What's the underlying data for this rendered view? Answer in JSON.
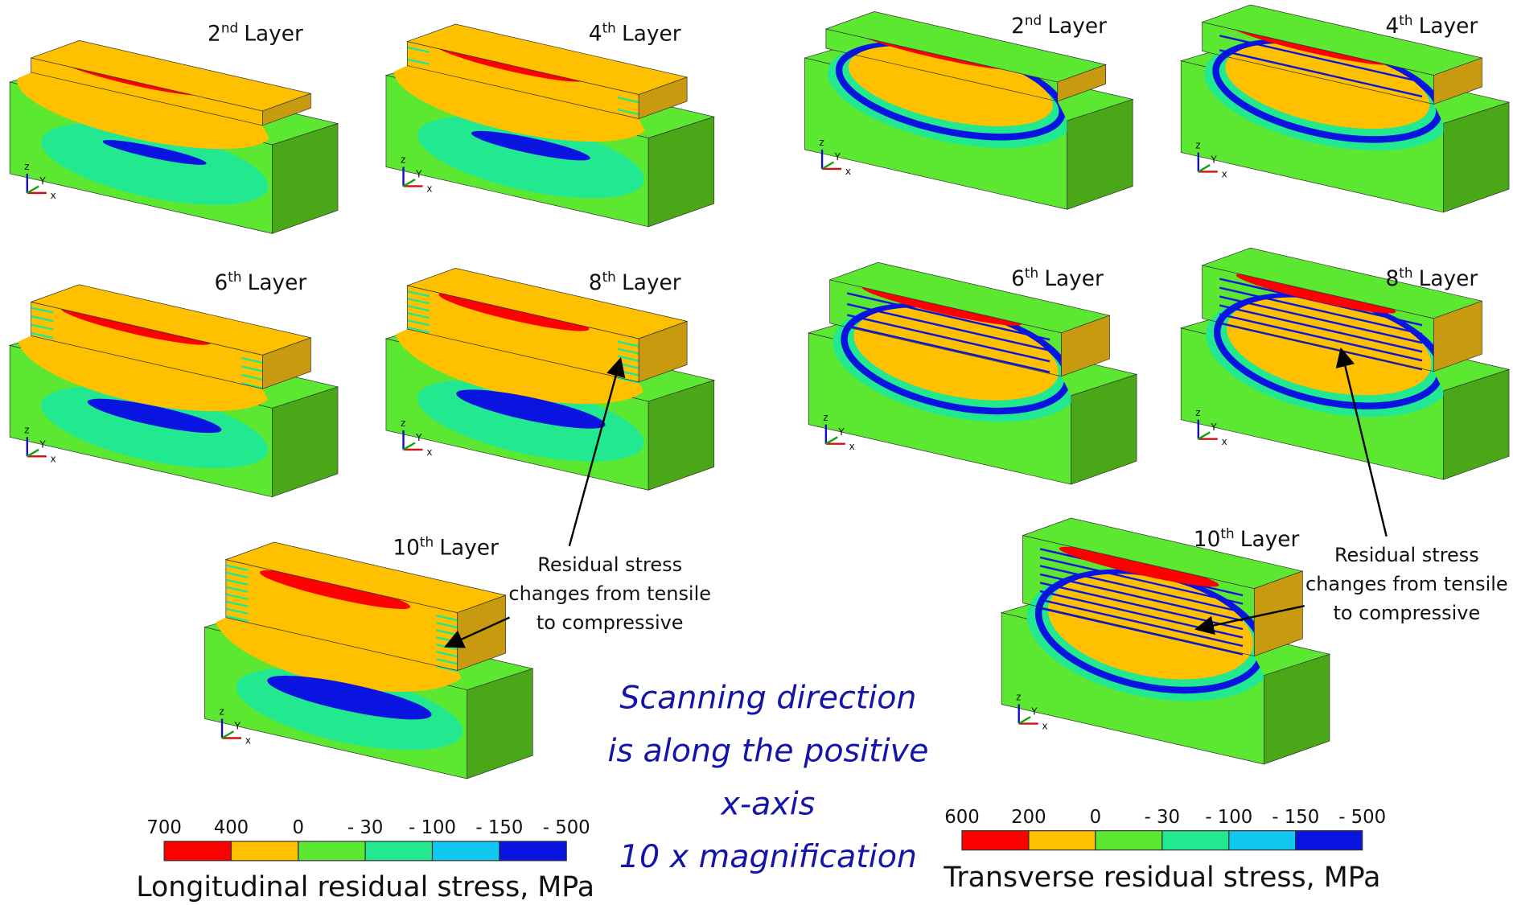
{
  "figure": {
    "left": {
      "panels": [
        {
          "number": "2",
          "suffix": "nd",
          "word": "Layer"
        },
        {
          "number": "4",
          "suffix": "th",
          "word": "Layer"
        },
        {
          "number": "6",
          "suffix": "th",
          "word": "Layer"
        },
        {
          "number": "8",
          "suffix": "th",
          "word": "Layer"
        },
        {
          "number": "10",
          "suffix": "th",
          "word": "Layer"
        }
      ],
      "annotation": [
        "Residual stress",
        "changes from tensile",
        "to compressive"
      ],
      "colorbar": {
        "labels": [
          "700",
          "400",
          "0",
          "- 30",
          "- 100",
          "- 150",
          "- 500"
        ],
        "title": "Longitudinal residual stress, MPa"
      }
    },
    "right": {
      "panels": [
        {
          "number": "2",
          "suffix": "nd",
          "word": "Layer"
        },
        {
          "number": "4",
          "suffix": "th",
          "word": "Layer"
        },
        {
          "number": "6",
          "suffix": "th",
          "word": "Layer"
        },
        {
          "number": "8",
          "suffix": "th",
          "word": "Layer"
        },
        {
          "number": "10",
          "suffix": "th",
          "word": "Layer"
        }
      ],
      "annotation": [
        "Residual stress",
        "changes from tensile",
        "to compressive"
      ],
      "colorbar": {
        "labels": [
          "600",
          "200",
          "0",
          "- 30",
          "- 100",
          "- 150",
          "- 500"
        ],
        "title": "Transverse residual stress, MPa"
      }
    },
    "axes": {
      "z": "z",
      "y": "Y",
      "x": "x"
    },
    "note": [
      "Scanning direction",
      "is along the positive",
      "x-axis",
      "10 x magnification"
    ]
  }
}
